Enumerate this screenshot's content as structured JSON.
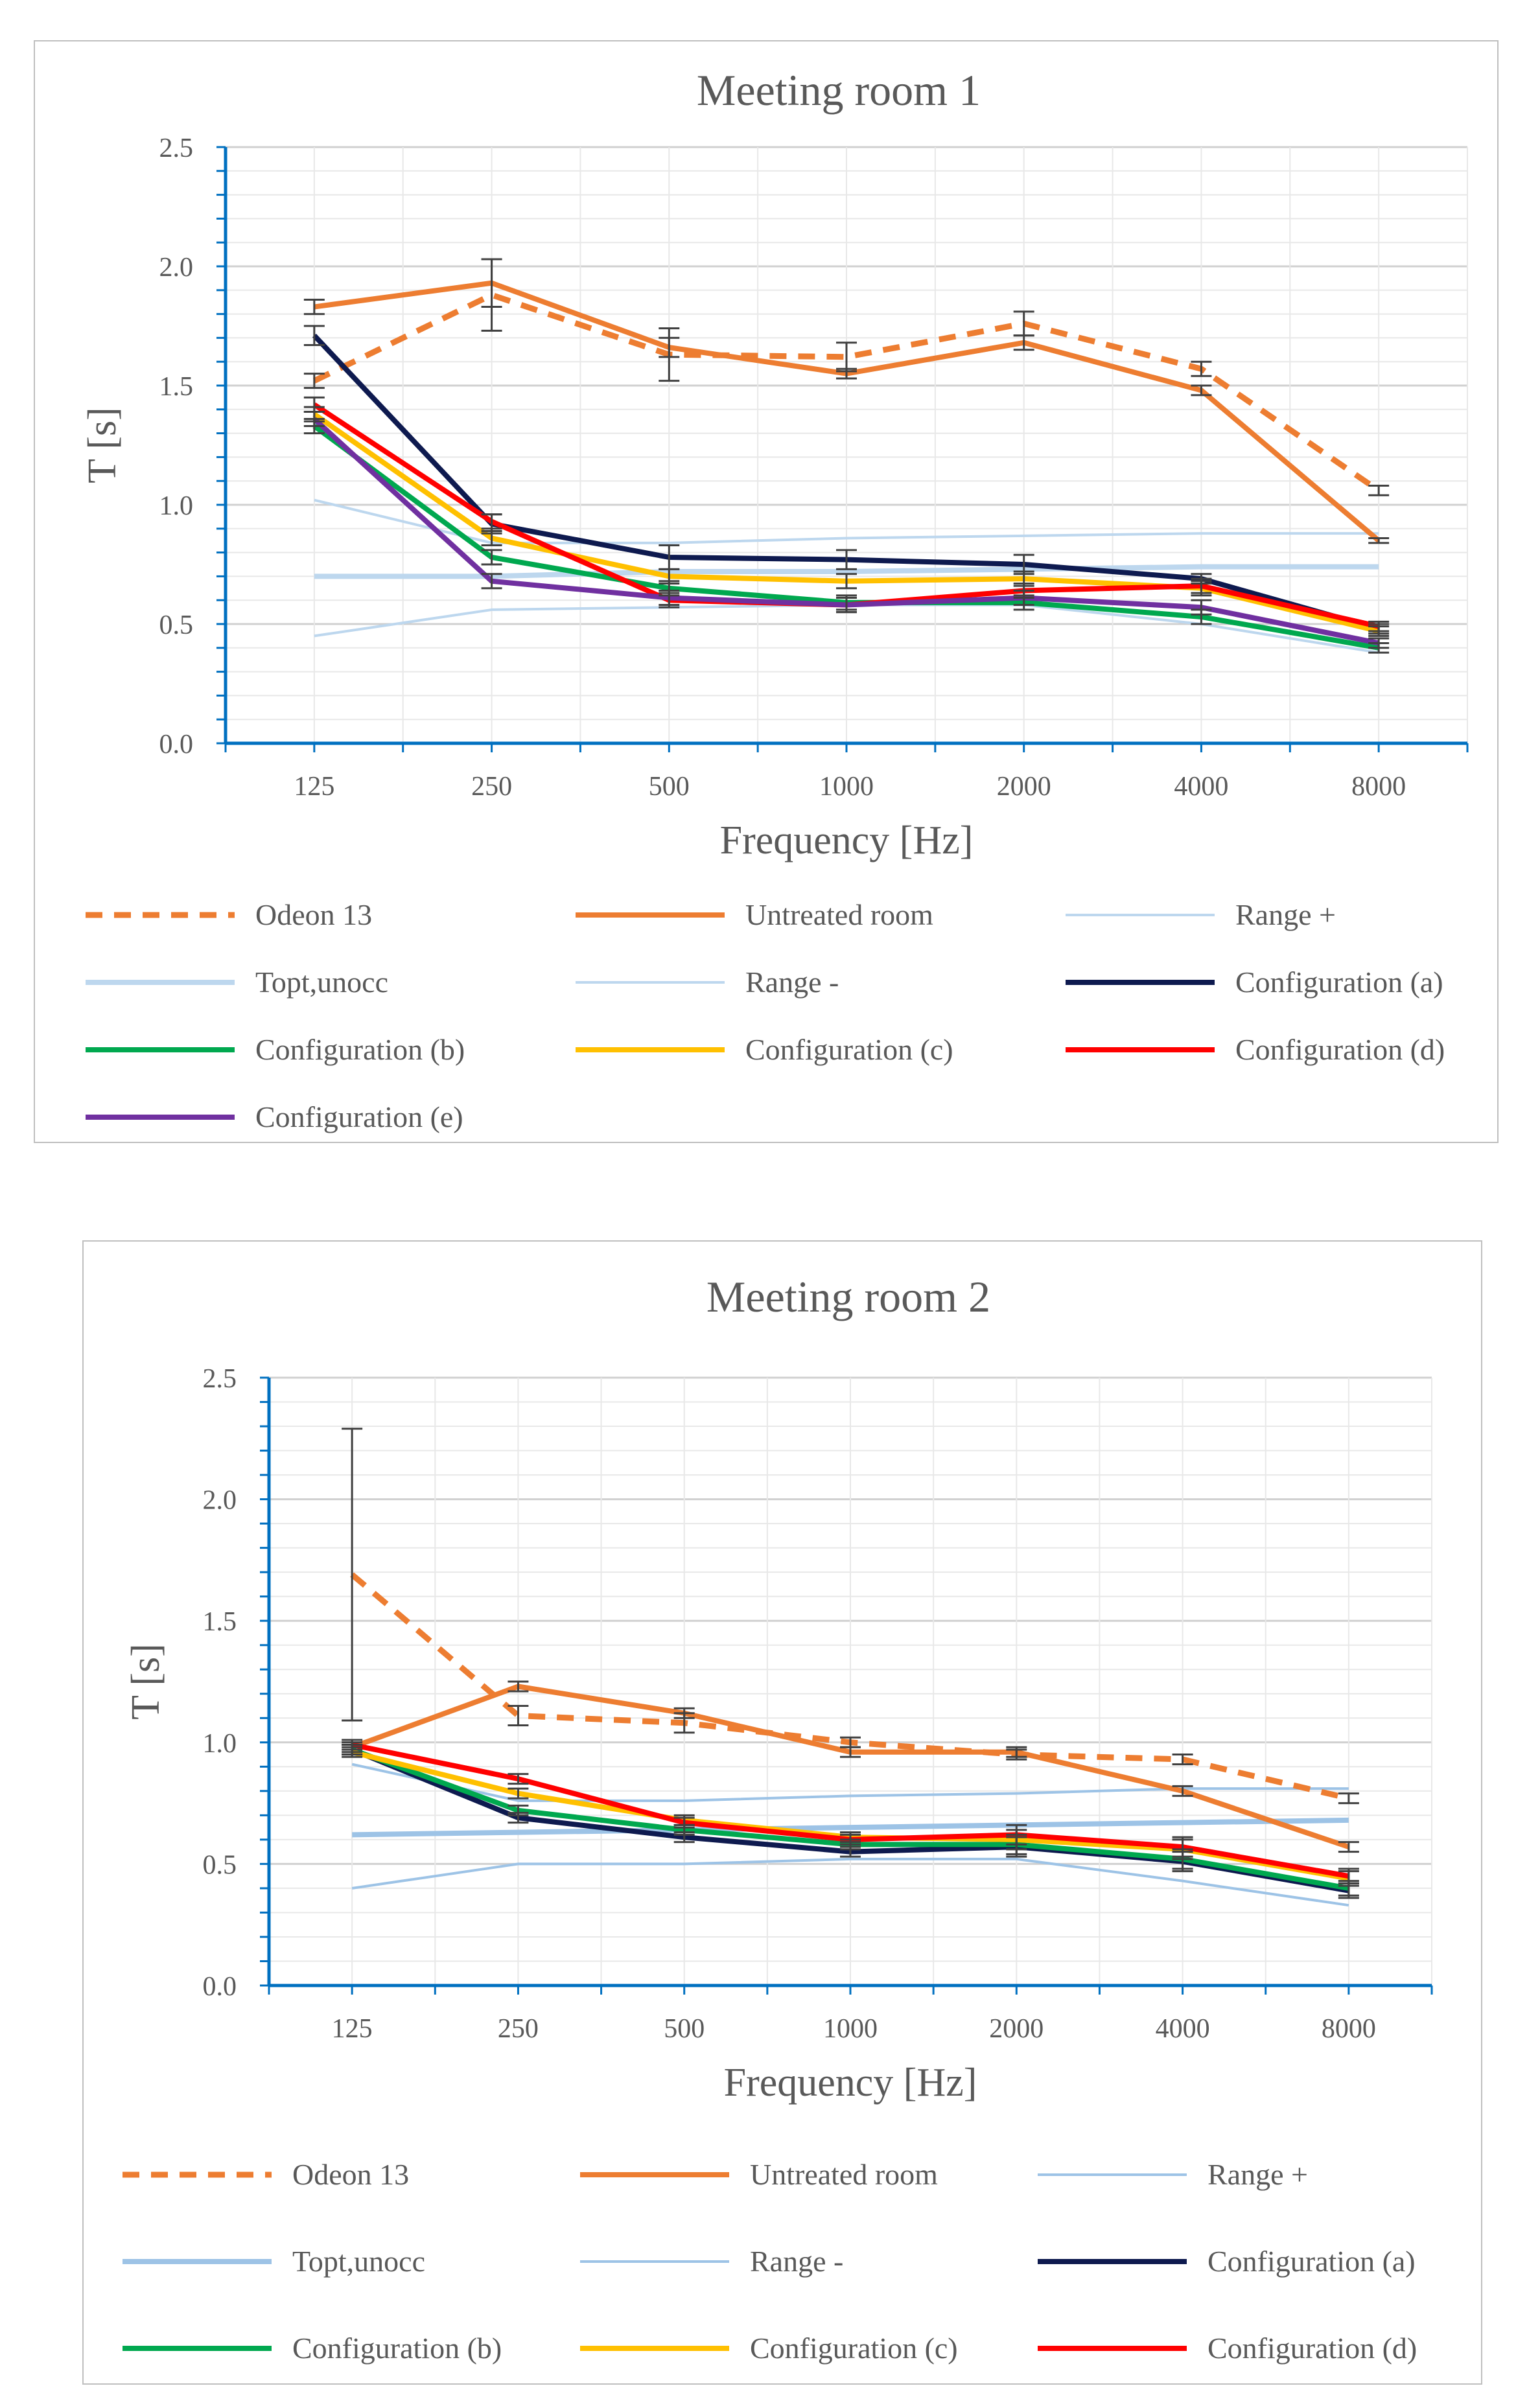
{
  "chart_data": [
    {
      "type": "line",
      "title": "Meeting room 1",
      "xlabel": "Frequency [Hz]",
      "ylabel": "T [s]",
      "ylim": [
        0,
        2.5
      ],
      "yticks": [
        "0.0",
        "0.5",
        "1.0",
        "1.5",
        "2.0",
        "2.5"
      ],
      "categories": [
        "125",
        "250",
        "500",
        "1000",
        "2000",
        "4000",
        "8000"
      ],
      "grid": true,
      "legend_position": "bottom",
      "series": [
        {
          "name": "Odeon 13",
          "color": "#ED7D31",
          "style": "dashed",
          "values": [
            1.52,
            1.88,
            1.63,
            1.62,
            1.76,
            1.57,
            1.06
          ],
          "errors": [
            0.03,
            0.15,
            0.11,
            0.06,
            0.05,
            0.03,
            0.02
          ]
        },
        {
          "name": "Untreated room",
          "color": "#ED7D31",
          "style": "solid",
          "values": [
            1.83,
            1.93,
            1.66,
            1.55,
            1.68,
            1.48,
            0.85
          ],
          "errors": [
            0.03,
            0.1,
            0.04,
            0.02,
            0.03,
            0.02,
            0.01
          ]
        },
        {
          "name": "Range +",
          "color": "#BDD7EE",
          "style": "thin",
          "values": [
            1.02,
            0.84,
            0.84,
            0.86,
            0.87,
            0.88,
            0.88
          ]
        },
        {
          "name": "Topt,unocc",
          "color": "#BDD7EE",
          "style": "thick",
          "values": [
            0.7,
            0.7,
            0.72,
            0.72,
            0.73,
            0.74,
            0.74
          ]
        },
        {
          "name": "Range -",
          "color": "#BDD7EE",
          "style": "thin",
          "values": [
            0.45,
            0.56,
            0.57,
            0.58,
            0.58,
            0.5,
            0.38
          ]
        },
        {
          "name": "Configuration (a)",
          "color": "#0E1A4F",
          "style": "solid",
          "values": [
            1.71,
            0.92,
            0.78,
            0.77,
            0.75,
            0.69,
            0.48
          ],
          "errors": [
            0.04,
            0.04,
            0.05,
            0.04,
            0.04,
            0.02,
            0.02
          ]
        },
        {
          "name": "Configuration (b)",
          "color": "#00A84F",
          "style": "solid",
          "values": [
            1.33,
            0.78,
            0.65,
            0.59,
            0.59,
            0.53,
            0.4
          ],
          "errors": [
            0.03,
            0.03,
            0.03,
            0.03,
            0.03,
            0.03,
            0.02
          ]
        },
        {
          "name": "Configuration (c)",
          "color": "#FFC000",
          "style": "solid",
          "values": [
            1.38,
            0.86,
            0.7,
            0.68,
            0.69,
            0.65,
            0.47
          ],
          "errors": [
            0.03,
            0.03,
            0.03,
            0.03,
            0.03,
            0.03,
            0.02
          ]
        },
        {
          "name": "Configuration (d)",
          "color": "#FF0000",
          "style": "solid",
          "values": [
            1.42,
            0.93,
            0.6,
            0.58,
            0.64,
            0.66,
            0.49
          ],
          "errors": [
            0.03,
            0.03,
            0.03,
            0.03,
            0.03,
            0.03,
            0.02
          ]
        },
        {
          "name": "Configuration (e)",
          "color": "#7030A0",
          "style": "solid",
          "values": [
            1.36,
            0.68,
            0.61,
            0.58,
            0.61,
            0.57,
            0.42
          ],
          "errors": [
            0.03,
            0.03,
            0.03,
            0.03,
            0.03,
            0.03,
            0.02
          ]
        }
      ]
    },
    {
      "type": "line",
      "title": "Meeting room 2",
      "xlabel": "Frequency [Hz]",
      "ylabel": "T [s]",
      "ylim": [
        0,
        2.5
      ],
      "yticks": [
        "0.0",
        "0.5",
        "1.0",
        "1.5",
        "2.0",
        "2.5"
      ],
      "categories": [
        "125",
        "250",
        "500",
        "1000",
        "2000",
        "4000",
        "8000"
      ],
      "grid": true,
      "legend_position": "bottom",
      "series": [
        {
          "name": "Odeon 13",
          "color": "#ED7D31",
          "style": "dashed",
          "values": [
            1.69,
            1.11,
            1.08,
            1.0,
            0.95,
            0.93,
            0.77
          ],
          "errors": [
            0.6,
            0.04,
            0.04,
            0.02,
            0.02,
            0.02,
            0.02
          ]
        },
        {
          "name": "Untreated room",
          "color": "#ED7D31",
          "style": "solid",
          "values": [
            0.98,
            1.23,
            1.12,
            0.96,
            0.96,
            0.8,
            0.57
          ],
          "errors": [
            0.02,
            0.02,
            0.02,
            0.02,
            0.02,
            0.02,
            0.02
          ]
        },
        {
          "name": "Range +",
          "color": "#9DC3E6",
          "style": "thin",
          "values": [
            0.91,
            0.76,
            0.76,
            0.78,
            0.79,
            0.81,
            0.81
          ]
        },
        {
          "name": "Topt,unocc",
          "color": "#9DC3E6",
          "style": "thick",
          "values": [
            0.62,
            0.63,
            0.64,
            0.65,
            0.66,
            0.67,
            0.68
          ]
        },
        {
          "name": "Range -",
          "color": "#9DC3E6",
          "style": "thin",
          "values": [
            0.4,
            0.5,
            0.5,
            0.52,
            0.52,
            0.43,
            0.33
          ]
        },
        {
          "name": "Configuration (a)",
          "color": "#0E1A4F",
          "style": "solid",
          "values": [
            0.97,
            0.69,
            0.61,
            0.55,
            0.57,
            0.51,
            0.39
          ],
          "errors": [
            0.02,
            0.02,
            0.02,
            0.02,
            0.04,
            0.04,
            0.03
          ]
        },
        {
          "name": "Configuration (b)",
          "color": "#00A84F",
          "style": "solid",
          "values": [
            0.97,
            0.72,
            0.64,
            0.58,
            0.58,
            0.52,
            0.4
          ],
          "errors": [
            0.02,
            0.02,
            0.02,
            0.02,
            0.04,
            0.04,
            0.03
          ]
        },
        {
          "name": "Configuration (c)",
          "color": "#FFC000",
          "style": "solid",
          "values": [
            0.96,
            0.79,
            0.68,
            0.61,
            0.6,
            0.56,
            0.44
          ],
          "errors": [
            0.02,
            0.02,
            0.02,
            0.02,
            0.04,
            0.04,
            0.03
          ]
        },
        {
          "name": "Configuration (d)",
          "color": "#FF0000",
          "style": "solid",
          "values": [
            0.99,
            0.85,
            0.67,
            0.6,
            0.62,
            0.57,
            0.45
          ],
          "errors": [
            0.02,
            0.02,
            0.02,
            0.02,
            0.04,
            0.04,
            0.03
          ]
        }
      ]
    }
  ]
}
